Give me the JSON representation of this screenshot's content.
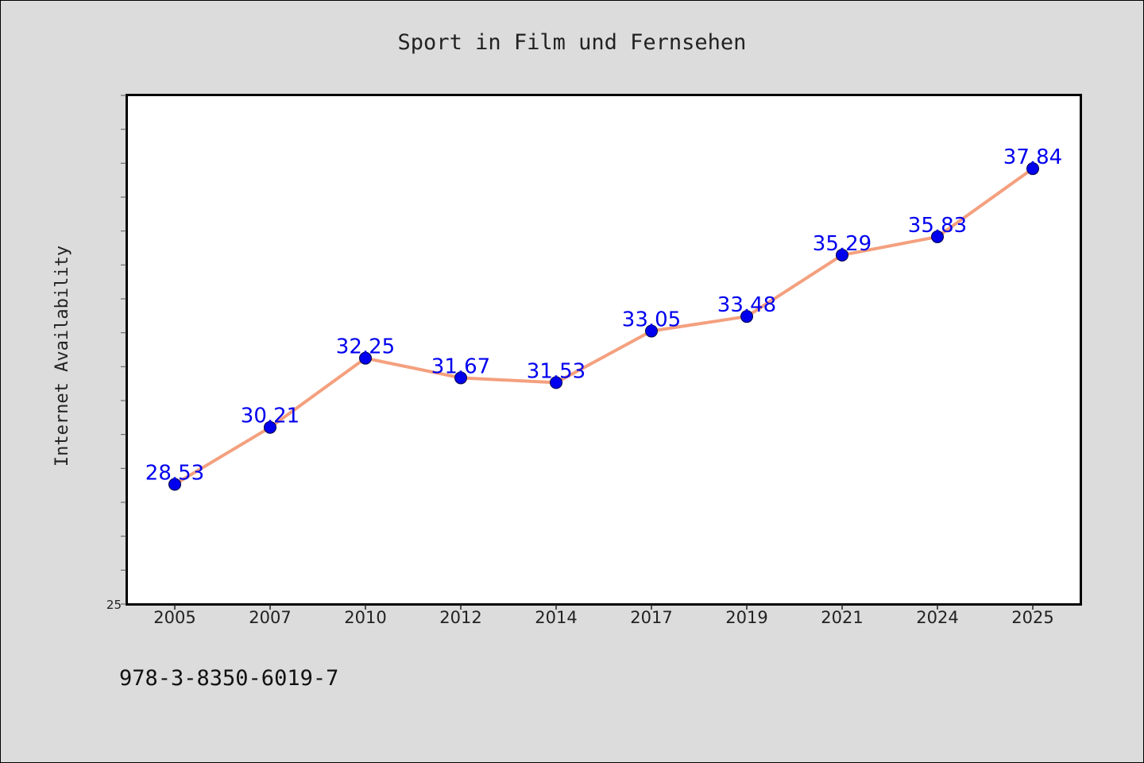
{
  "chart_data": {
    "type": "line",
    "title": "Sport in Film und Fernsehen",
    "xlabel": "",
    "ylabel": "Internet Availability",
    "categories": [
      "2005",
      "2007",
      "2010",
      "2012",
      "2014",
      "2017",
      "2019",
      "2021",
      "2024",
      "2025"
    ],
    "series": [
      {
        "values": [
          28.53,
          30.21,
          32.25,
          31.67,
          31.53,
          33.05,
          33.48,
          35.29,
          35.83,
          37.84
        ],
        "data_labels": [
          "28.53",
          "30.21",
          "32.25",
          "31.67",
          "31.53",
          "33.05",
          "33.48",
          "35.29",
          "35.83",
          "37.84"
        ],
        "line_color": "#f4a07e",
        "marker_color": "#0000ee"
      }
    ],
    "ylim": [
      25,
      40
    ],
    "ytick_labels": [
      "25"
    ],
    "grid": false,
    "legend": "none"
  },
  "footer_text": "978-3-8350-6019-7",
  "colors": {
    "background": "#dcdcdc",
    "plot_background": "#ffffff",
    "label_color": "#0000ee",
    "line_color": "#f4a07e"
  }
}
